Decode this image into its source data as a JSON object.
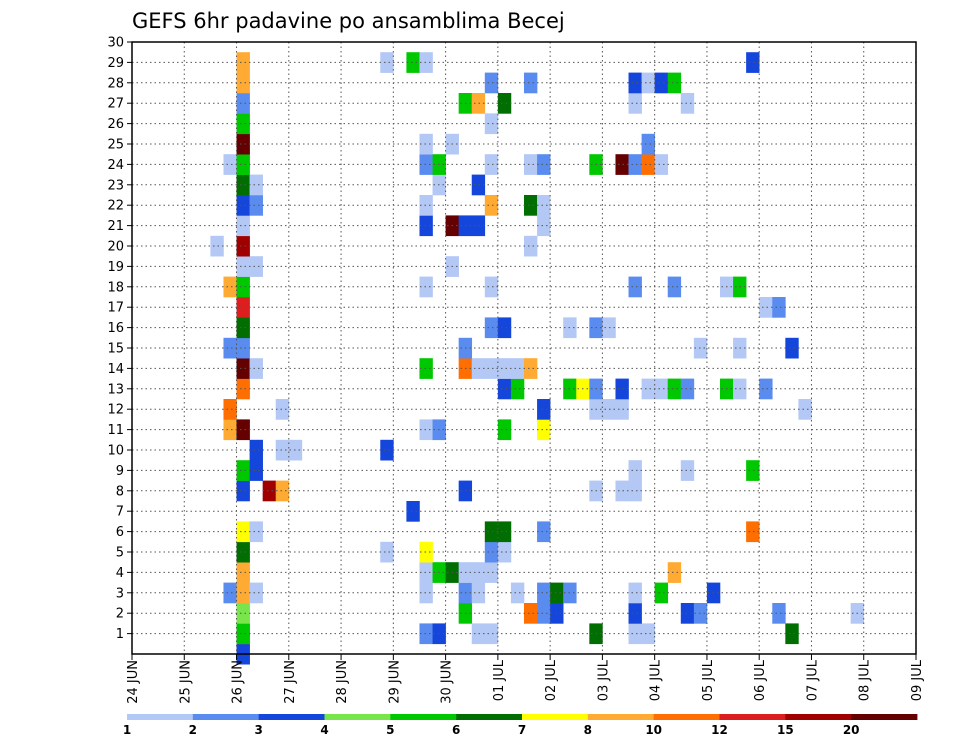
{
  "chart_data": {
    "type": "heatmap",
    "title": "GEFS 6hr padavine po ansamblima Becej",
    "x_labels": [
      "24 JUN",
      "25 JUN",
      "26 JUN",
      "27 JUN",
      "28 JUN",
      "29 JUN",
      "30 JUN",
      "01 JUL",
      "02 JUL",
      "03 JUL",
      "04 JUL",
      "05 JUL",
      "06 JUL",
      "07 JUL",
      "08 JUL",
      "09 JUL"
    ],
    "y_range": [
      0,
      30
    ],
    "y_ticks": [
      1,
      2,
      3,
      4,
      5,
      6,
      7,
      8,
      9,
      10,
      11,
      12,
      13,
      14,
      15,
      16,
      17,
      18,
      19,
      20,
      21,
      22,
      23,
      24,
      25,
      26,
      27,
      28,
      29,
      30
    ],
    "time_steps_per_day": 4,
    "colorbar": {
      "labels": [
        "1",
        "2",
        "3",
        "4",
        "5",
        "6",
        "7",
        "8",
        "10",
        "12",
        "15",
        "20"
      ],
      "colors": [
        "#b4c8f5",
        "#5a8cf0",
        "#1446dc",
        "#78e64b",
        "#00c800",
        "#006e00",
        "#ffff00",
        "#ffaa32",
        "#ff6e00",
        "#dc1e1e",
        "#a00000",
        "#640000"
      ]
    },
    "cells": [
      [
        8,
        0,
        2
      ],
      [
        8,
        0,
        3
      ],
      [
        8,
        1,
        10
      ],
      [
        8,
        1,
        5
      ],
      [
        22,
        1,
        2
      ],
      [
        23,
        1,
        3
      ],
      [
        26,
        1,
        1
      ],
      [
        27,
        1,
        1
      ],
      [
        35,
        1,
        6
      ],
      [
        38,
        1,
        1
      ],
      [
        39,
        1,
        1
      ],
      [
        50,
        1,
        6
      ],
      [
        8,
        2,
        4
      ],
      [
        25,
        2,
        5
      ],
      [
        30,
        2,
        10
      ],
      [
        31,
        2,
        2
      ],
      [
        32,
        2,
        3
      ],
      [
        38,
        2,
        3
      ],
      [
        42,
        2,
        3
      ],
      [
        43,
        2,
        2
      ],
      [
        49,
        2,
        2
      ],
      [
        55,
        2,
        1
      ],
      [
        7,
        3,
        2
      ],
      [
        8,
        3,
        9
      ],
      [
        9,
        3,
        1
      ],
      [
        22,
        3,
        1
      ],
      [
        25,
        3,
        2
      ],
      [
        26,
        3,
        1
      ],
      [
        29,
        3,
        1
      ],
      [
        31,
        3,
        2
      ],
      [
        32,
        3,
        6
      ],
      [
        33,
        3,
        2
      ],
      [
        38,
        3,
        1
      ],
      [
        40,
        3,
        5
      ],
      [
        44,
        3,
        3
      ],
      [
        8,
        4,
        9
      ],
      [
        22,
        4,
        1
      ],
      [
        23,
        4,
        5
      ],
      [
        24,
        4,
        6
      ],
      [
        25,
        4,
        1
      ],
      [
        26,
        4,
        1
      ],
      [
        27,
        4,
        1
      ],
      [
        41,
        4,
        8
      ],
      [
        8,
        5,
        6
      ],
      [
        19,
        5,
        1
      ],
      [
        22,
        5,
        7
      ],
      [
        27,
        5,
        2
      ],
      [
        28,
        5,
        1
      ],
      [
        8,
        6,
        7
      ],
      [
        9,
        6,
        1
      ],
      [
        27,
        6,
        6
      ],
      [
        28,
        6,
        6
      ],
      [
        31,
        6,
        2
      ],
      [
        47,
        6,
        10
      ],
      [
        21,
        7,
        3
      ],
      [
        8,
        8,
        3
      ],
      [
        10,
        8,
        15
      ],
      [
        11,
        8,
        8
      ],
      [
        25,
        8,
        3
      ],
      [
        35,
        8,
        1
      ],
      [
        37,
        8,
        1
      ],
      [
        38,
        8,
        1
      ],
      [
        8,
        9,
        5
      ],
      [
        9,
        9,
        3
      ],
      [
        38,
        9,
        1
      ],
      [
        42,
        9,
        1
      ],
      [
        47,
        9,
        5
      ],
      [
        9,
        10,
        3
      ],
      [
        11,
        10,
        1
      ],
      [
        12,
        10,
        1
      ],
      [
        19,
        10,
        3
      ],
      [
        7,
        11,
        8
      ],
      [
        8,
        11,
        20
      ],
      [
        22,
        11,
        1
      ],
      [
        23,
        11,
        2
      ],
      [
        28,
        11,
        5
      ],
      [
        31,
        11,
        7
      ],
      [
        7,
        12,
        10
      ],
      [
        11,
        12,
        1
      ],
      [
        31,
        12,
        3
      ],
      [
        35,
        12,
        1
      ],
      [
        36,
        12,
        1
      ],
      [
        37,
        12,
        1
      ],
      [
        51,
        12,
        1
      ],
      [
        8,
        13,
        10
      ],
      [
        28,
        13,
        3
      ],
      [
        29,
        13,
        5
      ],
      [
        33,
        13,
        5
      ],
      [
        34,
        13,
        7
      ],
      [
        35,
        13,
        2
      ],
      [
        37,
        13,
        3
      ],
      [
        39,
        13,
        1
      ],
      [
        40,
        13,
        1
      ],
      [
        41,
        13,
        5
      ],
      [
        42,
        13,
        2
      ],
      [
        45,
        13,
        5
      ],
      [
        46,
        13,
        1
      ],
      [
        48,
        13,
        2
      ],
      [
        8,
        14,
        20
      ],
      [
        9,
        14,
        1
      ],
      [
        22,
        14,
        5
      ],
      [
        25,
        14,
        10
      ],
      [
        26,
        14,
        1
      ],
      [
        27,
        14,
        1
      ],
      [
        28,
        14,
        1
      ],
      [
        29,
        14,
        1
      ],
      [
        30,
        14,
        8
      ],
      [
        7,
        15,
        2
      ],
      [
        8,
        15,
        2
      ],
      [
        25,
        15,
        2
      ],
      [
        43,
        15,
        1
      ],
      [
        46,
        15,
        1
      ],
      [
        50,
        15,
        3
      ],
      [
        8,
        16,
        6
      ],
      [
        27,
        16,
        2
      ],
      [
        28,
        16,
        3
      ],
      [
        33,
        16,
        1
      ],
      [
        35,
        16,
        2
      ],
      [
        36,
        16,
        1
      ],
      [
        8,
        17,
        12
      ],
      [
        48,
        17,
        1
      ],
      [
        49,
        17,
        2
      ],
      [
        7,
        18,
        8
      ],
      [
        8,
        18,
        5
      ],
      [
        22,
        18,
        1
      ],
      [
        27,
        18,
        1
      ],
      [
        38,
        18,
        2
      ],
      [
        41,
        18,
        2
      ],
      [
        45,
        18,
        1
      ],
      [
        46,
        18,
        5
      ],
      [
        8,
        19,
        1
      ],
      [
        9,
        19,
        1
      ],
      [
        24,
        19,
        1
      ],
      [
        6,
        20,
        1
      ],
      [
        8,
        20,
        15
      ],
      [
        30,
        20,
        1
      ],
      [
        8,
        21,
        1
      ],
      [
        22,
        21,
        3
      ],
      [
        24,
        21,
        20
      ],
      [
        25,
        21,
        3
      ],
      [
        26,
        21,
        3
      ],
      [
        31,
        21,
        1
      ],
      [
        8,
        22,
        3
      ],
      [
        9,
        22,
        2
      ],
      [
        22,
        22,
        1
      ],
      [
        27,
        22,
        8
      ],
      [
        30,
        22,
        6
      ],
      [
        31,
        22,
        1
      ],
      [
        8,
        23,
        6
      ],
      [
        9,
        23,
        1
      ],
      [
        23,
        23,
        1
      ],
      [
        26,
        23,
        3
      ],
      [
        7,
        24,
        1
      ],
      [
        8,
        24,
        5
      ],
      [
        22,
        24,
        2
      ],
      [
        23,
        24,
        5
      ],
      [
        27,
        24,
        1
      ],
      [
        30,
        24,
        1
      ],
      [
        31,
        24,
        2
      ],
      [
        35,
        24,
        5
      ],
      [
        37,
        24,
        20
      ],
      [
        38,
        24,
        2
      ],
      [
        39,
        24,
        10
      ],
      [
        40,
        24,
        1
      ],
      [
        8,
        25,
        20
      ],
      [
        22,
        25,
        1
      ],
      [
        24,
        25,
        1
      ],
      [
        39,
        25,
        2
      ],
      [
        8,
        26,
        5
      ],
      [
        27,
        26,
        1
      ],
      [
        8,
        27,
        2
      ],
      [
        25,
        27,
        5
      ],
      [
        26,
        27,
        8
      ],
      [
        28,
        27,
        6
      ],
      [
        38,
        27,
        1
      ],
      [
        42,
        27,
        1
      ],
      [
        8,
        28,
        8
      ],
      [
        27,
        28,
        2
      ],
      [
        30,
        28,
        2
      ],
      [
        38,
        28,
        3
      ],
      [
        39,
        28,
        1
      ],
      [
        40,
        28,
        3
      ],
      [
        41,
        28,
        5
      ],
      [
        8,
        29,
        8
      ],
      [
        19,
        29,
        1
      ],
      [
        21,
        29,
        5
      ],
      [
        22,
        29,
        1
      ],
      [
        47,
        29,
        3
      ]
    ]
  }
}
